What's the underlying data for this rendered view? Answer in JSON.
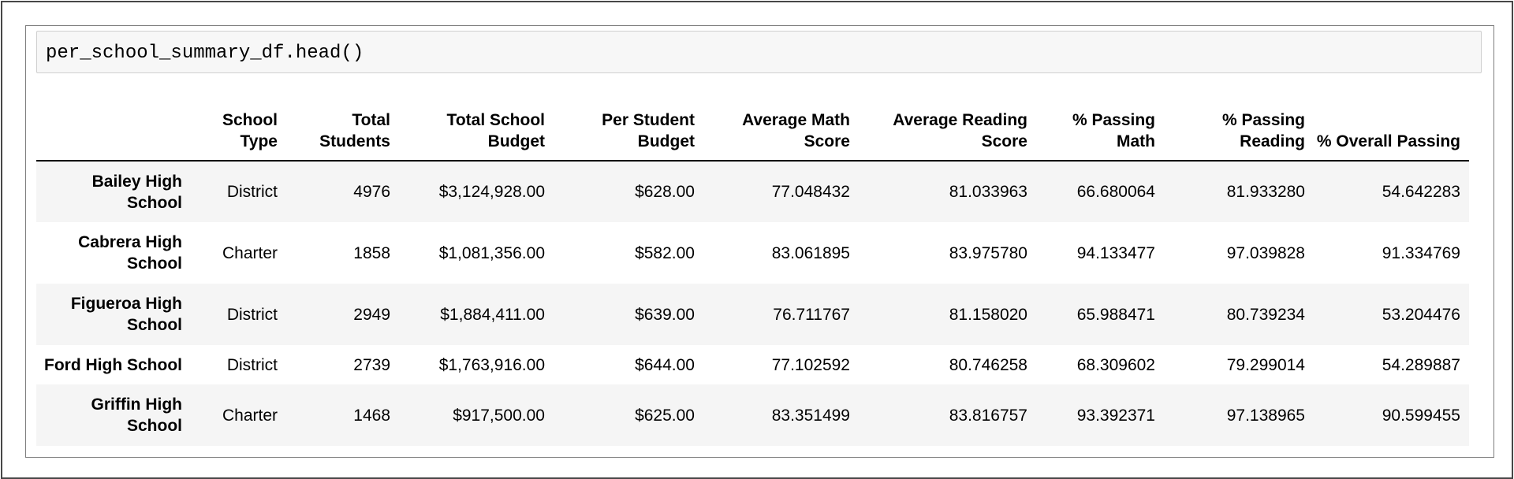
{
  "notebook": {
    "cell": {
      "input_code": "per_school_summary_df.head()"
    }
  },
  "dataframe": {
    "index_header": "",
    "columns": [
      "School Type",
      "Total Students",
      "Total School Budget",
      "Per Student Budget",
      "Average Math Score",
      "Average Reading Score",
      "% Passing Math",
      "% Passing Reading",
      "% Overall Passing"
    ],
    "rows": [
      {
        "index": "Bailey High School",
        "values": [
          "District",
          "4976",
          "$3,124,928.00",
          "$628.00",
          "77.048432",
          "81.033963",
          "66.680064",
          "81.933280",
          "54.642283"
        ]
      },
      {
        "index": "Cabrera High School",
        "values": [
          "Charter",
          "1858",
          "$1,081,356.00",
          "$582.00",
          "83.061895",
          "83.975780",
          "94.133477",
          "97.039828",
          "91.334769"
        ]
      },
      {
        "index": "Figueroa High School",
        "values": [
          "District",
          "2949",
          "$1,884,411.00",
          "$639.00",
          "76.711767",
          "81.158020",
          "65.988471",
          "80.739234",
          "53.204476"
        ]
      },
      {
        "index": "Ford High School",
        "values": [
          "District",
          "2739",
          "$1,763,916.00",
          "$644.00",
          "77.102592",
          "80.746258",
          "68.309602",
          "79.299014",
          "54.289887"
        ]
      },
      {
        "index": "Griffin High School",
        "values": [
          "Charter",
          "1468",
          "$917,500.00",
          "$625.00",
          "83.351499",
          "83.816757",
          "93.392371",
          "97.138965",
          "90.599455"
        ]
      }
    ]
  },
  "colors": {
    "stripe": "#f5f5f5",
    "input_background": "#f7f7f7",
    "border": "#7d7d7d",
    "text": "#000000"
  }
}
